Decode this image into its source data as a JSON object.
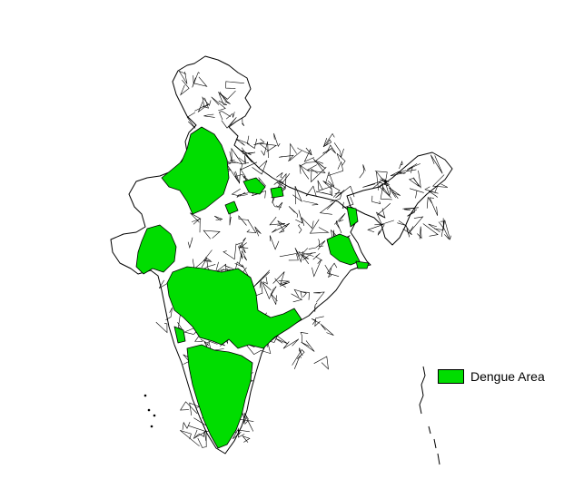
{
  "map": {
    "legend": {
      "label": "Dengue Area",
      "color": "#00dd00"
    },
    "colors": {
      "outline": "#000000",
      "land": "#ffffff",
      "highlight": "#00dd00"
    }
  }
}
